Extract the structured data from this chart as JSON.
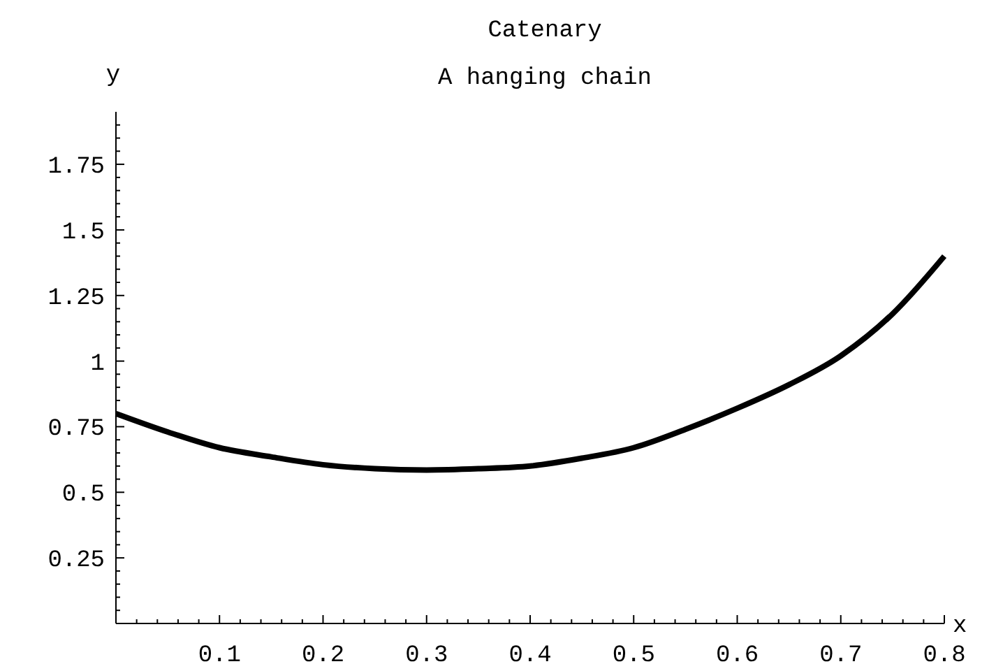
{
  "chart_data": {
    "type": "line",
    "title": "Catenary",
    "subtitle": "A hanging chain",
    "xlabel": "x",
    "ylabel": "y",
    "x": [
      0,
      0.05,
      0.1,
      0.15,
      0.2,
      0.25,
      0.3,
      0.35,
      0.4,
      0.45,
      0.5,
      0.55,
      0.6,
      0.65,
      0.7,
      0.75,
      0.8
    ],
    "series": [
      {
        "color": "#000000",
        "values": [
          0.8,
          0.73,
          0.67,
          0.635,
          0.605,
          0.59,
          0.585,
          0.59,
          0.6,
          0.63,
          0.67,
          0.74,
          0.82,
          0.91,
          1.02,
          1.18,
          1.4
        ]
      }
    ],
    "xlim": [
      0,
      0.8
    ],
    "ylim": [
      0,
      1.95
    ],
    "xticks": [
      {
        "value": 0.02,
        "label": null
      },
      {
        "value": 0.04,
        "label": null
      },
      {
        "value": 0.06,
        "label": null
      },
      {
        "value": 0.08,
        "label": null
      },
      0.1,
      {
        "value": 0.12,
        "label": null
      },
      {
        "value": 0.14,
        "label": null
      },
      {
        "value": 0.16,
        "label": null
      },
      {
        "value": 0.18,
        "label": null
      },
      0.2,
      {
        "value": 0.22,
        "label": null
      },
      {
        "value": 0.24,
        "label": null
      },
      {
        "value": 0.26,
        "label": null
      },
      {
        "value": 0.28,
        "label": null
      },
      0.3,
      {
        "value": 0.32,
        "label": null
      },
      {
        "value": 0.34,
        "label": null
      },
      {
        "value": 0.36,
        "label": null
      },
      {
        "value": 0.38,
        "label": null
      },
      0.4,
      {
        "value": 0.42,
        "label": null
      },
      {
        "value": 0.44,
        "label": null
      },
      {
        "value": 0.46,
        "label": null
      },
      {
        "value": 0.48,
        "label": null
      },
      0.5,
      {
        "value": 0.52,
        "label": null
      },
      {
        "value": 0.54,
        "label": null
      },
      {
        "value": 0.56,
        "label": null
      },
      {
        "value": 0.58,
        "label": null
      },
      0.6,
      {
        "value": 0.62,
        "label": null
      },
      {
        "value": 0.64,
        "label": null
      },
      {
        "value": 0.66,
        "label": null
      },
      {
        "value": 0.68,
        "label": null
      },
      0.7,
      {
        "value": 0.72,
        "label": null
      },
      {
        "value": 0.74,
        "label": null
      },
      {
        "value": 0.76,
        "label": null
      },
      {
        "value": 0.78,
        "label": null
      },
      0.8
    ],
    "yticks": [
      {
        "value": 0.05,
        "label": null
      },
      {
        "value": 0.1,
        "label": null
      },
      {
        "value": 0.15,
        "label": null
      },
      {
        "value": 0.2,
        "label": null
      },
      0.25,
      {
        "value": 0.3,
        "label": null
      },
      {
        "value": 0.35,
        "label": null
      },
      {
        "value": 0.4,
        "label": null
      },
      {
        "value": 0.45,
        "label": null
      },
      0.5,
      {
        "value": 0.55,
        "label": null
      },
      {
        "value": 0.6,
        "label": null
      },
      {
        "value": 0.65,
        "label": null
      },
      {
        "value": 0.7,
        "label": null
      },
      0.75,
      {
        "value": 0.8,
        "label": null
      },
      {
        "value": 0.85,
        "label": null
      },
      {
        "value": 0.9,
        "label": null
      },
      {
        "value": 0.95,
        "label": null
      },
      1,
      {
        "value": 1.05,
        "label": null
      },
      {
        "value": 1.1,
        "label": null
      },
      {
        "value": 1.15,
        "label": null
      },
      {
        "value": 1.2,
        "label": null
      },
      1.25,
      {
        "value": 1.3,
        "label": null
      },
      {
        "value": 1.35,
        "label": null
      },
      {
        "value": 1.4,
        "label": null
      },
      {
        "value": 1.45,
        "label": null
      },
      1.5,
      {
        "value": 1.55,
        "label": null
      },
      {
        "value": 1.6,
        "label": null
      },
      {
        "value": 1.65,
        "label": null
      },
      {
        "value": 1.7,
        "label": null
      },
      1.75,
      {
        "value": 1.8,
        "label": null
      },
      {
        "value": 1.85,
        "label": null
      },
      {
        "value": 1.9,
        "label": null
      }
    ],
    "grid": false,
    "marker": "none",
    "line_style": "solid"
  }
}
